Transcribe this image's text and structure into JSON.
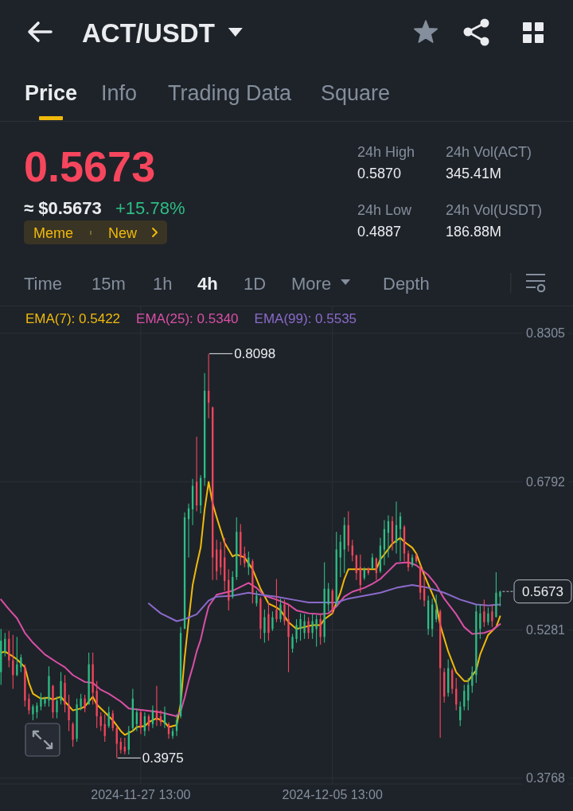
{
  "chart_data": [
    {
      "type": "other",
      "title": "ACT/USDT",
      "annotations": [
        "Price",
        "Info",
        "Trading Data",
        "Square",
        "0.5673",
        "≈ $0.5673",
        "+15.78%",
        "Meme",
        "New",
        "24h High",
        "0.5870",
        "24h Vol(ACT)",
        "345.41M",
        "24h Low",
        "0.4887",
        "24h Vol(USDT)",
        "186.88M",
        "Time",
        "15m",
        "1h",
        "4h",
        "1D",
        "More",
        "Depth"
      ]
    },
    {
      "type": "candlestick",
      "x": [
        "2024-11-21T17:00",
        "2024-11-21T21:00",
        "2024-11-22T01:00",
        "2024-11-22T05:00",
        "2024-11-22T09:00",
        "2024-11-22T13:00",
        "2024-11-22T17:00",
        "2024-11-22T21:00",
        "2024-11-23T01:00",
        "2024-11-23T05:00",
        "2024-11-23T09:00",
        "2024-11-23T13:00",
        "2024-11-23T17:00",
        "2024-11-23T21:00",
        "2024-11-24T01:00",
        "2024-11-24T05:00",
        "2024-11-24T09:00",
        "2024-11-24T13:00",
        "2024-11-24T17:00",
        "2024-11-24T21:00",
        "2024-11-25T01:00",
        "2024-11-25T05:00",
        "2024-11-25T09:00",
        "2024-11-25T13:00",
        "2024-11-25T17:00",
        "2024-11-25T21:00",
        "2024-11-26T01:00",
        "2024-11-26T05:00",
        "2024-11-26T09:00",
        "2024-11-26T13:00",
        "2024-11-26T17:00",
        "2024-11-26T21:00",
        "2024-11-27T01:00",
        "2024-11-27T05:00",
        "2024-11-27T09:00",
        "2024-11-27T13:00",
        "2024-11-27T17:00",
        "2024-11-27T21:00",
        "2024-11-28T01:00",
        "2024-11-28T05:00",
        "2024-11-28T09:00",
        "2024-11-28T13:00",
        "2024-11-28T17:00",
        "2024-11-28T21:00",
        "2024-11-29T01:00",
        "2024-11-29T05:00",
        "2024-11-29T09:00",
        "2024-11-29T13:00",
        "2024-11-29T17:00",
        "2024-11-29T21:00",
        "2024-11-30T01:00",
        "2024-11-30T05:00",
        "2024-11-30T09:00",
        "2024-11-30T13:00",
        "2024-11-30T17:00",
        "2024-11-30T21:00",
        "2024-12-01T01:00",
        "2024-12-01T05:00",
        "2024-12-01T09:00",
        "2024-12-01T13:00",
        "2024-12-01T17:00",
        "2024-12-01T21:00",
        "2024-12-02T01:00",
        "2024-12-02T05:00",
        "2024-12-02T09:00",
        "2024-12-02T13:00",
        "2024-12-02T17:00",
        "2024-12-02T21:00",
        "2024-12-03T01:00",
        "2024-12-03T05:00",
        "2024-12-03T09:00",
        "2024-12-03T13:00",
        "2024-12-03T17:00",
        "2024-12-03T21:00",
        "2024-12-04T01:00",
        "2024-12-04T05:00",
        "2024-12-04T09:00",
        "2024-12-04T13:00",
        "2024-12-04T17:00",
        "2024-12-04T21:00",
        "2024-12-05T01:00",
        "2024-12-05T05:00",
        "2024-12-05T09:00",
        "2024-12-05T13:00",
        "2024-12-05T17:00",
        "2024-12-05T21:00",
        "2024-12-06T01:00",
        "2024-12-06T05:00",
        "2024-12-06T09:00",
        "2024-12-06T13:00",
        "2024-12-06T17:00",
        "2024-12-06T21:00",
        "2024-12-07T01:00",
        "2024-12-07T05:00",
        "2024-12-07T09:00",
        "2024-12-07T13:00",
        "2024-12-07T17:00",
        "2024-12-07T21:00",
        "2024-12-08T01:00",
        "2024-12-08T05:00",
        "2024-12-08T09:00",
        "2024-12-08T13:00",
        "2024-12-08T17:00",
        "2024-12-08T21:00",
        "2024-12-09T01:00",
        "2024-12-09T05:00",
        "2024-12-09T09:00",
        "2024-12-09T13:00",
        "2024-12-09T17:00",
        "2024-12-09T21:00",
        "2024-12-10T01:00",
        "2024-12-10T05:00",
        "2024-12-10T09:00",
        "2024-12-10T13:00",
        "2024-12-10T17:00",
        "2024-12-10T21:00",
        "2024-12-11T01:00",
        "2024-12-11T05:00",
        "2024-12-11T09:00",
        "2024-12-11T13:00",
        "2024-12-11T17:00",
        "2024-12-11T21:00",
        "2024-12-12T01:00",
        "2024-12-12T05:00",
        "2024-12-12T09:00",
        "2024-12-12T13:00"
      ],
      "ohlc": [
        [
          0.485,
          0.529,
          0.472,
          0.517
        ],
        [
          0.506,
          0.525,
          0.501,
          0.519
        ],
        [
          0.519,
          0.527,
          0.49,
          0.497
        ],
        [
          0.497,
          0.523,
          0.468,
          0.482
        ],
        [
          0.482,
          0.521,
          0.481,
          0.493
        ],
        [
          0.49,
          0.503,
          0.485,
          0.5
        ],
        [
          0.49,
          0.493,
          0.45,
          0.456
        ],
        [
          0.458,
          0.463,
          0.442,
          0.446
        ],
        [
          0.442,
          0.452,
          0.436,
          0.45
        ],
        [
          0.444,
          0.454,
          0.438,
          0.451
        ],
        [
          0.45,
          0.464,
          0.446,
          0.459
        ],
        [
          0.453,
          0.46,
          0.45,
          0.458
        ],
        [
          0.456,
          0.491,
          0.45,
          0.481
        ],
        [
          0.471,
          0.472,
          0.438,
          0.444
        ],
        [
          0.444,
          0.46,
          0.438,
          0.456
        ],
        [
          0.456,
          0.485,
          0.452,
          0.476
        ],
        [
          0.474,
          0.482,
          0.444,
          0.452
        ],
        [
          0.452,
          0.462,
          0.425,
          0.436
        ],
        [
          0.432,
          0.434,
          0.409,
          0.416
        ],
        [
          0.417,
          0.458,
          0.414,
          0.452
        ],
        [
          0.45,
          0.463,
          0.446,
          0.458
        ],
        [
          0.458,
          0.462,
          0.444,
          0.448
        ],
        [
          0.452,
          0.505,
          0.452,
          0.493
        ],
        [
          0.493,
          0.505,
          0.452,
          0.464
        ],
        [
          0.466,
          0.476,
          0.428,
          0.44
        ],
        [
          0.44,
          0.444,
          0.425,
          0.43
        ],
        [
          0.432,
          0.442,
          0.414,
          0.42
        ],
        [
          0.43,
          0.45,
          0.428,
          0.444
        ],
        [
          0.443,
          0.446,
          0.425,
          0.428
        ],
        [
          0.428,
          0.43,
          0.3975,
          0.412
        ],
        [
          0.414,
          0.418,
          0.402,
          0.406
        ],
        [
          0.409,
          0.418,
          0.401,
          0.404
        ],
        [
          0.406,
          0.43,
          0.401,
          0.425
        ],
        [
          0.428,
          0.468,
          0.425,
          0.458
        ],
        [
          0.432,
          0.448,
          0.425,
          0.444
        ],
        [
          0.444,
          0.446,
          0.422,
          0.428
        ],
        [
          0.425,
          0.444,
          0.42,
          0.44
        ],
        [
          0.44,
          0.442,
          0.425,
          0.43
        ],
        [
          0.432,
          0.451,
          0.428,
          0.446
        ],
        [
          0.446,
          0.471,
          0.43,
          0.436
        ],
        [
          0.44,
          0.446,
          0.43,
          0.434
        ],
        [
          0.432,
          0.45,
          0.428,
          0.444
        ],
        [
          0.432,
          0.434,
          0.417,
          0.422
        ],
        [
          0.42,
          0.428,
          0.417,
          0.425
        ],
        [
          0.425,
          0.442,
          0.42,
          0.436
        ],
        [
          0.44,
          0.531,
          0.438,
          0.525
        ],
        [
          0.529,
          0.648,
          0.529,
          0.643
        ],
        [
          0.641,
          0.657,
          0.602,
          0.652
        ],
        [
          0.651,
          0.682,
          0.635,
          0.675
        ],
        [
          0.679,
          0.725,
          0.649,
          0.655
        ],
        [
          0.655,
          0.686,
          0.647,
          0.683
        ],
        [
          0.683,
          0.79,
          0.675,
          0.772
        ],
        [
          0.772,
          0.8098,
          0.744,
          0.76
        ],
        [
          0.755,
          0.756,
          0.579,
          0.602
        ],
        [
          0.61,
          0.62,
          0.579,
          0.588
        ],
        [
          0.61,
          0.618,
          0.584,
          0.592
        ],
        [
          0.602,
          0.622,
          0.568,
          0.578
        ],
        [
          0.579,
          0.59,
          0.548,
          0.558
        ],
        [
          0.562,
          0.588,
          0.56,
          0.582
        ],
        [
          0.582,
          0.643,
          0.579,
          0.628
        ],
        [
          0.628,
          0.636,
          0.594,
          0.602
        ],
        [
          0.606,
          0.613,
          0.592,
          0.596
        ],
        [
          0.592,
          0.608,
          0.584,
          0.602
        ],
        [
          0.598,
          0.6,
          0.555,
          0.566
        ],
        [
          0.555,
          0.568,
          0.552,
          0.563
        ],
        [
          0.56,
          0.562,
          0.519,
          0.529
        ],
        [
          0.525,
          0.549,
          0.515,
          0.541
        ],
        [
          0.544,
          0.556,
          0.517,
          0.525
        ],
        [
          0.529,
          0.547,
          0.527,
          0.541
        ],
        [
          0.549,
          0.58,
          0.536,
          0.539
        ],
        [
          0.539,
          0.56,
          0.536,
          0.554
        ],
        [
          0.554,
          0.559,
          0.533,
          0.537
        ],
        [
          0.539,
          0.554,
          0.485,
          0.521
        ],
        [
          0.509,
          0.524,
          0.505,
          0.521
        ],
        [
          0.519,
          0.539,
          0.515,
          0.533
        ],
        [
          0.529,
          0.545,
          0.517,
          0.539
        ],
        [
          0.525,
          0.544,
          0.519,
          0.537
        ],
        [
          0.537,
          0.541,
          0.519,
          0.525
        ],
        [
          0.525,
          0.544,
          0.519,
          0.537
        ],
        [
          0.529,
          0.543,
          0.511,
          0.539
        ],
        [
          0.539,
          0.544,
          0.513,
          0.521
        ],
        [
          0.521,
          0.597,
          0.515,
          0.57
        ],
        [
          0.554,
          0.576,
          0.547,
          0.57
        ],
        [
          0.568,
          0.57,
          0.544,
          0.549
        ],
        [
          0.554,
          0.628,
          0.552,
          0.61
        ],
        [
          0.602,
          0.625,
          0.582,
          0.618
        ],
        [
          0.61,
          0.643,
          0.586,
          0.635
        ],
        [
          0.635,
          0.649,
          0.608,
          0.614
        ],
        [
          0.614,
          0.62,
          0.598,
          0.604
        ],
        [
          0.604,
          0.605,
          0.579,
          0.586
        ],
        [
          0.592,
          0.605,
          0.566,
          0.574
        ],
        [
          0.581,
          0.592,
          0.579,
          0.59
        ],
        [
          0.591,
          0.592,
          0.584,
          0.586
        ],
        [
          0.591,
          0.606,
          0.59,
          0.602
        ],
        [
          0.601,
          0.602,
          0.579,
          0.586
        ],
        [
          0.588,
          0.622,
          0.586,
          0.614
        ],
        [
          0.61,
          0.64,
          0.594,
          0.631
        ],
        [
          0.627,
          0.645,
          0.602,
          0.639
        ],
        [
          0.639,
          0.644,
          0.609,
          0.618
        ],
        [
          0.617,
          0.659,
          0.606,
          0.635
        ],
        [
          0.631,
          0.648,
          0.598,
          0.644
        ],
        [
          0.633,
          0.635,
          0.598,
          0.606
        ],
        [
          0.606,
          0.609,
          0.588,
          0.592
        ],
        [
          0.594,
          0.605,
          0.592,
          0.602
        ],
        [
          0.604,
          0.606,
          0.596,
          0.598
        ],
        [
          0.592,
          0.594,
          0.559,
          0.566
        ],
        [
          0.57,
          0.584,
          0.552,
          0.558
        ],
        [
          0.529,
          0.563,
          0.523,
          0.558
        ],
        [
          0.529,
          0.56,
          0.521,
          0.554
        ],
        [
          0.539,
          0.564,
          0.536,
          0.549
        ],
        [
          0.547,
          0.549,
          0.418,
          0.489
        ],
        [
          0.485,
          0.489,
          0.454,
          0.46
        ],
        [
          0.464,
          0.498,
          0.46,
          0.489
        ],
        [
          0.487,
          0.489,
          0.463,
          0.468
        ],
        [
          0.468,
          0.479,
          0.446,
          0.452
        ],
        [
          0.436,
          0.455,
          0.43,
          0.45
        ],
        [
          0.45,
          0.472,
          0.446,
          0.466
        ],
        [
          0.456,
          0.479,
          0.446,
          0.472
        ],
        [
          0.471,
          0.491,
          0.464,
          0.485
        ],
        [
          0.482,
          0.554,
          0.474,
          0.547
        ],
        [
          0.529,
          0.554,
          0.519,
          0.545
        ],
        [
          0.547,
          0.559,
          0.531,
          0.536
        ],
        [
          0.536,
          0.551,
          0.533,
          0.545
        ],
        [
          0.547,
          0.554,
          0.531,
          0.537
        ],
        [
          0.541,
          0.587,
          0.541,
          0.566
        ],
        [
          0.562,
          0.568,
          0.552,
          0.5673
        ]
      ],
      "series": [
        {
          "type": "line",
          "name": "EMA(7): 0.5422",
          "color": "#f0b90b",
          "x": [
            "2024-11-21T17:00",
            "2024-11-21T21:00",
            "2024-11-22T05:00",
            "2024-11-22T09:00",
            "2024-11-22T17:00",
            "2024-11-22T21:00",
            "2024-11-23T01:00",
            "2024-11-23T09:00",
            "2024-11-23T17:00",
            "2024-11-23T21:00",
            "2024-11-24T05:00",
            "2024-11-24T09:00",
            "2024-11-24T17:00",
            "2024-11-25T01:00",
            "2024-11-25T05:00",
            "2024-11-25T13:00",
            "2024-11-25T17:00",
            "2024-11-26T01:00",
            "2024-11-26T09:00",
            "2024-11-26T17:00",
            "2024-11-26T21:00",
            "2024-11-27T05:00",
            "2024-11-27T09:00",
            "2024-11-27T17:00",
            "2024-11-27T21:00",
            "2024-11-28T05:00",
            "2024-11-28T13:00",
            "2024-11-28T17:00",
            "2024-11-28T21:00",
            "2024-11-29T01:00",
            "2024-11-29T05:00",
            "2024-11-29T09:00",
            "2024-11-29T13:00",
            "2024-11-29T17:00",
            "2024-11-29T21:00",
            "2024-11-30T01:00",
            "2024-11-30T05:00",
            "2024-11-30T09:00",
            "2024-11-30T13:00",
            "2024-11-30T17:00",
            "2024-11-30T21:00",
            "2024-12-01T01:00",
            "2024-12-01T09:00",
            "2024-12-01T13:00",
            "2024-12-01T21:00",
            "2024-12-02T05:00",
            "2024-12-02T13:00",
            "2024-12-02T21:00",
            "2024-12-03T05:00",
            "2024-12-03T09:00",
            "2024-12-03T17:00",
            "2024-12-04T01:00",
            "2024-12-04T09:00",
            "2024-12-04T17:00",
            "2024-12-05T01:00",
            "2024-12-05T05:00",
            "2024-12-05T13:00",
            "2024-12-05T17:00",
            "2024-12-05T21:00",
            "2024-12-06T01:00",
            "2024-12-06T05:00",
            "2024-12-06T13:00",
            "2024-12-06T21:00",
            "2024-12-07T09:00",
            "2024-12-07T13:00",
            "2024-12-07T17:00",
            "2024-12-08T01:00",
            "2024-12-08T09:00",
            "2024-12-08T13:00",
            "2024-12-08T21:00",
            "2024-12-09T01:00",
            "2024-12-09T09:00",
            "2024-12-09T17:00",
            "2024-12-09T21:00",
            "2024-12-10T01:00",
            "2024-12-10T09:00",
            "2024-12-10T17:00",
            "2024-12-11T01:00",
            "2024-12-11T05:00",
            "2024-12-11T13:00",
            "2024-12-11T17:00",
            "2024-12-12T01:00",
            "2024-12-12T09:00",
            "2024-12-12T13:00"
          ],
          "values": [
            0.505,
            0.506,
            0.501,
            0.498,
            0.49,
            0.474,
            0.463,
            0.458,
            0.459,
            0.457,
            0.46,
            0.455,
            0.446,
            0.448,
            0.45,
            0.46,
            0.452,
            0.444,
            0.436,
            0.425,
            0.421,
            0.425,
            0.429,
            0.43,
            0.434,
            0.438,
            0.434,
            0.429,
            0.43,
            0.431,
            0.453,
            0.5,
            0.538,
            0.574,
            0.594,
            0.612,
            0.651,
            0.679,
            0.657,
            0.643,
            0.63,
            0.617,
            0.603,
            0.605,
            0.602,
            0.59,
            0.57,
            0.555,
            0.551,
            0.548,
            0.536,
            0.529,
            0.531,
            0.533,
            0.533,
            0.539,
            0.545,
            0.556,
            0.566,
            0.58,
            0.59,
            0.59,
            0.59,
            0.59,
            0.6,
            0.605,
            0.616,
            0.622,
            0.618,
            0.612,
            0.606,
            0.584,
            0.565,
            0.555,
            0.533,
            0.506,
            0.485,
            0.476,
            0.476,
            0.487,
            0.503,
            0.523,
            0.531,
            0.542
          ]
        },
        {
          "type": "line",
          "name": "EMA(25): 0.5340",
          "color": "#da4fa6",
          "x": [
            "2024-11-21T17:00",
            "2024-11-22T01:00",
            "2024-11-22T09:00",
            "2024-11-22T17:00",
            "2024-11-23T01:00",
            "2024-11-23T13:00",
            "2024-11-24T01:00",
            "2024-11-24T09:00",
            "2024-11-24T17:00",
            "2024-11-25T05:00",
            "2024-11-25T13:00",
            "2024-11-25T21:00",
            "2024-11-26T05:00",
            "2024-11-26T17:00",
            "2024-11-27T01:00",
            "2024-11-27T17:00",
            "2024-11-28T09:00",
            "2024-11-28T17:00",
            "2024-11-29T01:00",
            "2024-11-29T05:00",
            "2024-11-29T09:00",
            "2024-11-29T13:00",
            "2024-11-29T17:00",
            "2024-11-29T21:00",
            "2024-11-30T01:00",
            "2024-11-30T05:00",
            "2024-11-30T09:00",
            "2024-11-30T17:00",
            "2024-12-01T01:00",
            "2024-12-01T09:00",
            "2024-12-01T17:00",
            "2024-12-02T01:00",
            "2024-12-02T09:00",
            "2024-12-02T17:00",
            "2024-12-03T05:00",
            "2024-12-03T17:00",
            "2024-12-04T01:00",
            "2024-12-04T13:00",
            "2024-12-05T01:00",
            "2024-12-05T09:00",
            "2024-12-05T17:00",
            "2024-12-06T01:00",
            "2024-12-06T09:00",
            "2024-12-06T21:00",
            "2024-12-07T05:00",
            "2024-12-07T13:00",
            "2024-12-07T21:00",
            "2024-12-08T05:00",
            "2024-12-08T17:00",
            "2024-12-09T01:00",
            "2024-12-09T13:00",
            "2024-12-09T21:00",
            "2024-12-10T05:00",
            "2024-12-10T17:00",
            "2024-12-11T01:00",
            "2024-12-11T09:00",
            "2024-12-11T21:00",
            "2024-12-12T05:00",
            "2024-12-12T13:00"
          ],
          "values": [
            0.559,
            0.549,
            0.54,
            0.525,
            0.515,
            0.503,
            0.495,
            0.49,
            0.482,
            0.475,
            0.474,
            0.467,
            0.463,
            0.455,
            0.448,
            0.446,
            0.444,
            0.442,
            0.44,
            0.445,
            0.459,
            0.476,
            0.49,
            0.506,
            0.518,
            0.536,
            0.552,
            0.564,
            0.566,
            0.568,
            0.572,
            0.576,
            0.571,
            0.563,
            0.559,
            0.554,
            0.548,
            0.545,
            0.544,
            0.545,
            0.552,
            0.562,
            0.567,
            0.571,
            0.575,
            0.58,
            0.588,
            0.596,
            0.597,
            0.594,
            0.584,
            0.574,
            0.56,
            0.544,
            0.531,
            0.524,
            0.525,
            0.528,
            0.534
          ]
        },
        {
          "type": "line",
          "name": "EMA(99): 0.5535",
          "color": "#8b6acb",
          "x": [
            "2024-11-27T21:00",
            "2024-11-28T09:00",
            "2024-11-29T01:00",
            "2024-11-29T09:00",
            "2024-11-29T21:00",
            "2024-11-30T09:00",
            "2024-11-30T17:00",
            "2024-12-01T09:00",
            "2024-12-02T01:00",
            "2024-12-02T13:00",
            "2024-12-03T05:00",
            "2024-12-03T21:00",
            "2024-12-04T13:00",
            "2024-12-05T05:00",
            "2024-12-05T17:00",
            "2024-12-06T05:00",
            "2024-12-06T21:00",
            "2024-12-07T13:00",
            "2024-12-08T05:00",
            "2024-12-08T21:00",
            "2024-12-09T13:00",
            "2024-12-10T05:00",
            "2024-12-10T21:00",
            "2024-12-11T13:00",
            "2024-12-12T01:00",
            "2024-12-12T13:00"
          ],
          "values": [
            0.555,
            0.545,
            0.537,
            0.539,
            0.544,
            0.558,
            0.562,
            0.563,
            0.566,
            0.564,
            0.562,
            0.559,
            0.556,
            0.556,
            0.556,
            0.56,
            0.563,
            0.566,
            0.571,
            0.574,
            0.571,
            0.566,
            0.559,
            0.554,
            0.553,
            0.554
          ]
        }
      ],
      "xlim": [
        "2024-11-21T16:00",
        "2024-12-15T14:00"
      ],
      "ylim": [
        0.371,
        0.858
      ],
      "xticks": [
        {
          "value": "2024-11-27T13:00",
          "label": "2024-11-27 13:00"
        },
        {
          "value": "2024-12-05T13:00",
          "label": "2024-12-05 13:00"
        }
      ],
      "yticks": [
        0.3768,
        0.5281,
        0.6792,
        0.8305
      ],
      "grid": true,
      "legend": "top left",
      "annotations": [
        {
          "text": "0.8098",
          "x": "2024-11-30T09:00",
          "y": 0.8098
        },
        {
          "text": "0.3975",
          "x": "2024-11-26T13:00",
          "y": 0.3975
        }
      ],
      "ref_lines": [
        {
          "axis": "y",
          "value": 0.5673,
          "label": "0.5673"
        }
      ]
    }
  ]
}
